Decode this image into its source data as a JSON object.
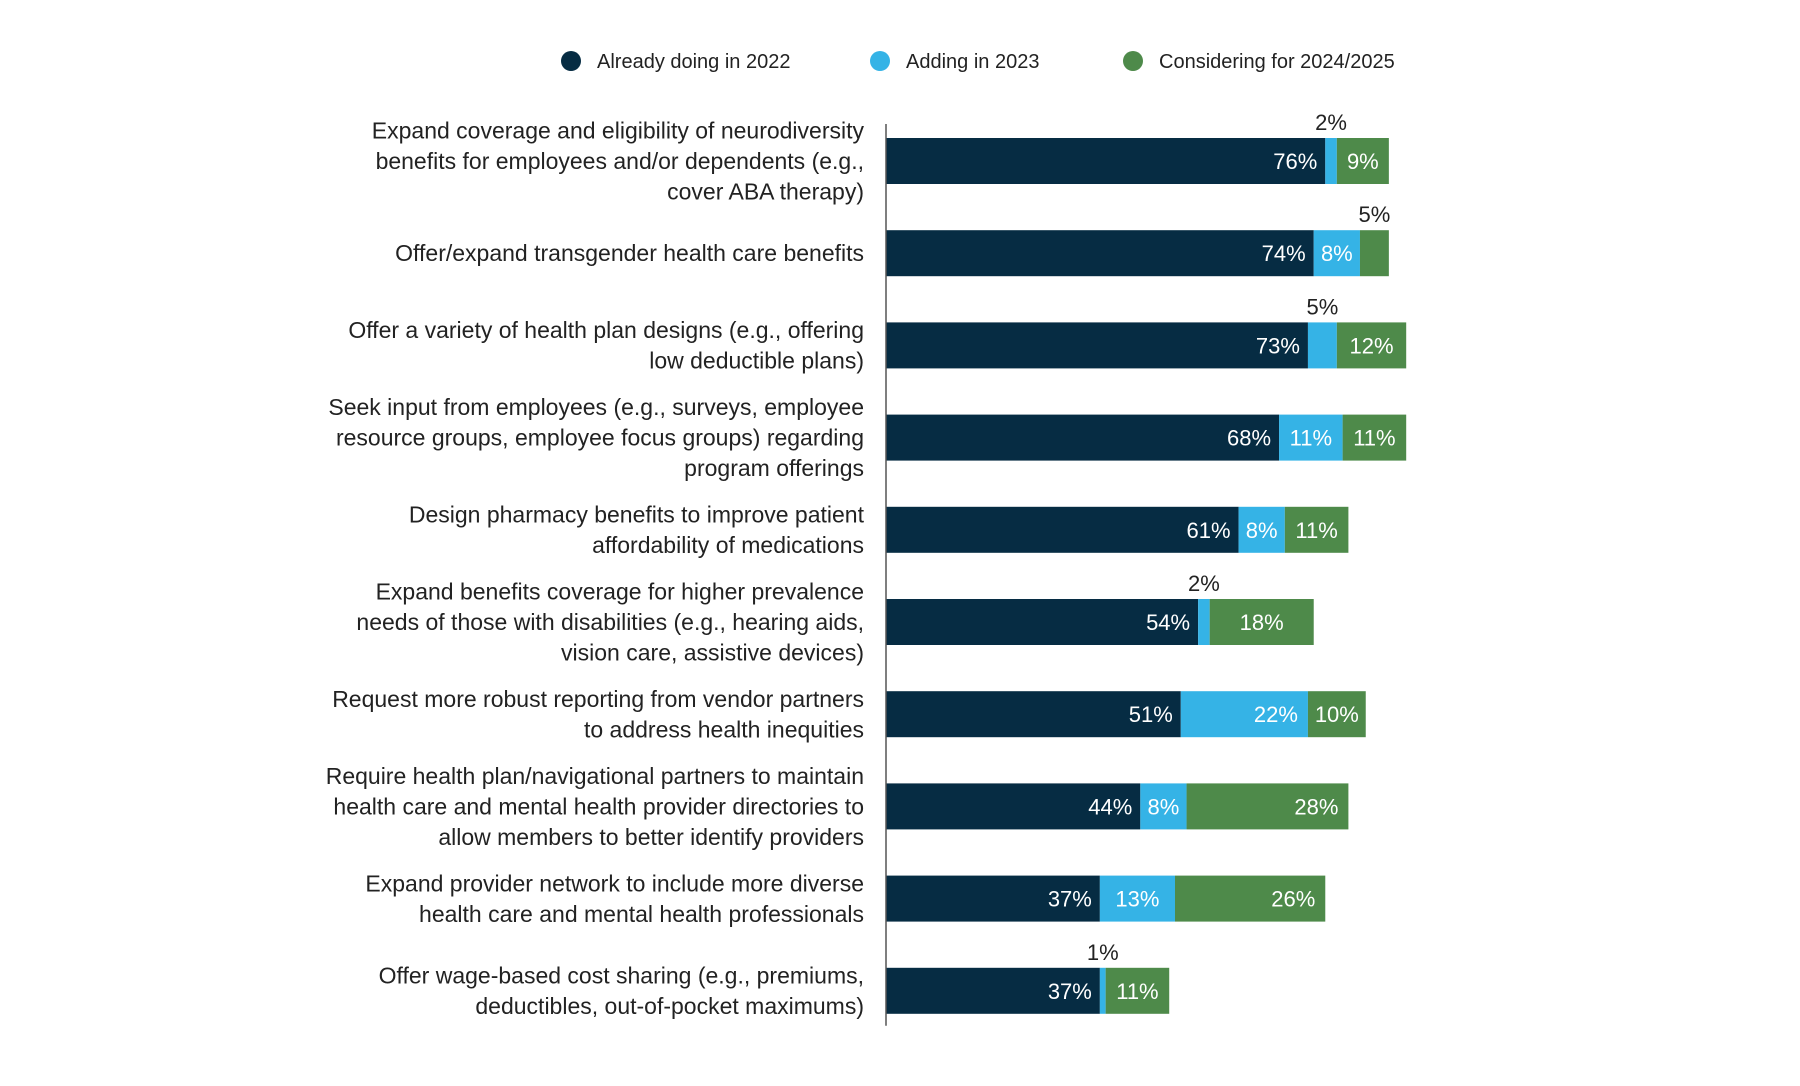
{
  "chart_data": {
    "type": "bar",
    "orientation": "horizontal",
    "stacked": true,
    "title": "",
    "xlabel": "",
    "ylabel": "",
    "xlim": [
      0,
      100
    ],
    "grid": false,
    "legend_position": "top",
    "categories": [
      [
        "Expand coverage and eligibility of neurodiversity",
        "benefits for employees and/or dependents (e.g.,",
        "cover ABA therapy)"
      ],
      [
        "Offer/expand transgender health care benefits"
      ],
      [
        "Offer a variety of health plan designs (e.g., offering",
        "low deductible plans)"
      ],
      [
        "Seek input from employees (e.g., surveys, employee",
        "resource groups, employee focus groups) regarding",
        "program offerings"
      ],
      [
        "Design pharmacy benefits to improve patient",
        "affordability of medications"
      ],
      [
        "Expand benefits coverage for higher prevalence",
        "needs of those with disabilities (e.g., hearing aids,",
        "vision care, assistive devices)"
      ],
      [
        "Request more robust reporting from vendor partners",
        "to address health inequities"
      ],
      [
        "Require health plan/navigational partners to maintain",
        "health care and mental health provider directories to",
        "allow members to better identify providers"
      ],
      [
        "Expand provider network to include more diverse",
        "health care and mental health professionals"
      ],
      [
        "Offer wage-based cost sharing (e.g., premiums,",
        "deductibles, out-of-pocket maximums)"
      ]
    ],
    "series": [
      {
        "name": "Already doing in 2022",
        "color": "#062c43",
        "values": [
          76,
          74,
          73,
          68,
          61,
          54,
          51,
          44,
          37,
          37
        ],
        "labels": [
          "76%",
          "74%",
          "73%",
          "68%",
          "61%",
          "54%",
          "51%",
          "44%",
          "37%",
          "37%"
        ]
      },
      {
        "name": "Adding in 2023",
        "color": "#35b3e6",
        "values": [
          2,
          8,
          5,
          11,
          8,
          2,
          22,
          8,
          13,
          1
        ],
        "labels": [
          "2%",
          "8%",
          "5%",
          "11%",
          "8%",
          "2%",
          "22%",
          "8%",
          "13%",
          "1%"
        ]
      },
      {
        "name": "Considering for 2024/2025",
        "color": "#4e8a4a",
        "values": [
          9,
          5,
          12,
          11,
          11,
          18,
          10,
          28,
          26,
          11
        ],
        "labels": [
          "9%",
          "5%",
          "12%",
          "11%",
          "11%",
          "18%",
          "10%",
          "28%",
          "26%",
          "11%"
        ]
      }
    ],
    "outside_labels": [
      {
        "category": 0,
        "series": 1
      },
      {
        "category": 1,
        "series": 2
      },
      {
        "category": 2,
        "series": 1
      },
      {
        "category": 5,
        "series": 1
      },
      {
        "category": 9,
        "series": 1
      }
    ]
  }
}
